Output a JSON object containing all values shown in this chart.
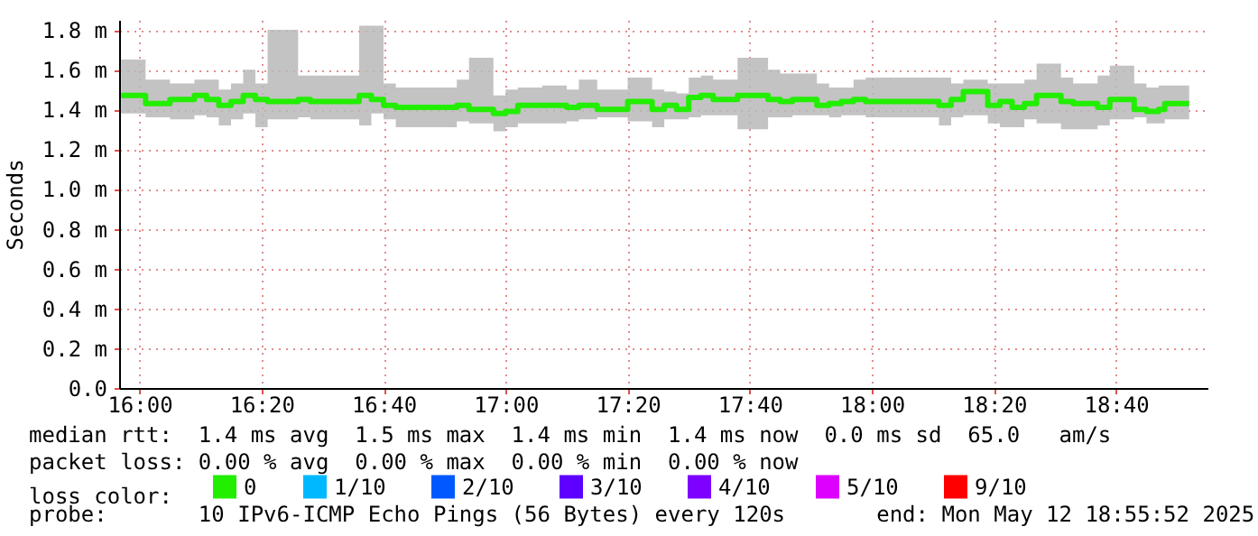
{
  "chart_data": {
    "type": "step",
    "ylabel": "Seconds",
    "legend_title": "loss color:",
    "legend": "bottom",
    "grid": true,
    "line_style": "solid",
    "marker": "none",
    "x": [
      "2025-05-12T15:57",
      "2025-05-12T16:01",
      "2025-05-12T16:05",
      "2025-05-12T16:09",
      "2025-05-12T16:11",
      "2025-05-12T16:13",
      "2025-05-12T16:15",
      "2025-05-12T16:17",
      "2025-05-12T16:19",
      "2025-05-12T16:21",
      "2025-05-12T16:26",
      "2025-05-12T16:28",
      "2025-05-12T16:36",
      "2025-05-12T16:38",
      "2025-05-12T16:40",
      "2025-05-12T16:42",
      "2025-05-12T16:52",
      "2025-05-12T16:54",
      "2025-05-12T16:58",
      "2025-05-12T17:00",
      "2025-05-12T17:02",
      "2025-05-12T17:06",
      "2025-05-12T17:10",
      "2025-05-12T17:12",
      "2025-05-12T17:15",
      "2025-05-12T17:18",
      "2025-05-12T17:20",
      "2025-05-12T17:24",
      "2025-05-12T17:26",
      "2025-05-12T17:28",
      "2025-05-12T17:30",
      "2025-05-12T17:32",
      "2025-05-12T17:34",
      "2025-05-12T17:38",
      "2025-05-12T17:43",
      "2025-05-12T17:45",
      "2025-05-12T17:47",
      "2025-05-12T17:51",
      "2025-05-12T17:53",
      "2025-05-12T17:55",
      "2025-05-12T17:57",
      "2025-05-12T17:59",
      "2025-05-12T18:11",
      "2025-05-12T18:13",
      "2025-05-12T18:15",
      "2025-05-12T18:19",
      "2025-05-12T18:21",
      "2025-05-12T18:23",
      "2025-05-12T18:25",
      "2025-05-12T18:27",
      "2025-05-12T18:31",
      "2025-05-12T18:33",
      "2025-05-12T18:37",
      "2025-05-12T18:39",
      "2025-05-12T18:43",
      "2025-05-12T18:45",
      "2025-05-12T18:47",
      "2025-05-12T18:48",
      "2025-05-12T18:52"
    ],
    "series": [
      {
        "name": "0",
        "color": "#22ee00",
        "values": [
          1.47,
          1.43,
          1.45,
          1.47,
          1.45,
          1.42,
          1.44,
          1.47,
          1.45,
          1.44,
          1.45,
          1.44,
          1.47,
          1.45,
          1.42,
          1.41,
          1.42,
          1.4,
          1.38,
          1.39,
          1.42,
          1.42,
          1.41,
          1.42,
          1.4,
          1.4,
          1.44,
          1.4,
          1.42,
          1.4,
          1.46,
          1.47,
          1.45,
          1.47,
          1.45,
          1.44,
          1.45,
          1.42,
          1.43,
          1.44,
          1.45,
          1.44,
          1.42,
          1.45,
          1.49,
          1.42,
          1.44,
          1.41,
          1.43,
          1.47,
          1.44,
          1.43,
          1.41,
          1.45,
          1.4,
          1.39,
          1.4,
          1.43,
          1.43
        ],
        "lower": [
          1.38,
          1.36,
          1.35,
          1.37,
          1.36,
          1.32,
          1.35,
          1.38,
          1.31,
          1.35,
          1.36,
          1.35,
          1.32,
          1.38,
          1.35,
          1.31,
          1.34,
          1.33,
          1.29,
          1.31,
          1.33,
          1.33,
          1.34,
          1.35,
          1.36,
          1.36,
          1.34,
          1.31,
          1.35,
          1.35,
          1.36,
          1.37,
          1.37,
          1.3,
          1.36,
          1.36,
          1.37,
          1.37,
          1.36,
          1.37,
          1.37,
          1.36,
          1.32,
          1.36,
          1.37,
          1.33,
          1.31,
          1.31,
          1.35,
          1.33,
          1.3,
          1.3,
          1.32,
          1.35,
          1.36,
          1.33,
          1.33,
          1.35,
          1.36
        ],
        "upper": [
          1.65,
          1.55,
          1.53,
          1.55,
          1.55,
          1.5,
          1.53,
          1.6,
          1.53,
          1.8,
          1.57,
          1.57,
          1.82,
          1.82,
          1.53,
          1.51,
          1.55,
          1.66,
          1.47,
          1.5,
          1.51,
          1.52,
          1.5,
          1.55,
          1.5,
          1.5,
          1.56,
          1.5,
          1.49,
          1.48,
          1.56,
          1.57,
          1.55,
          1.66,
          1.6,
          1.58,
          1.58,
          1.53,
          1.51,
          1.51,
          1.55,
          1.56,
          1.56,
          1.53,
          1.55,
          1.53,
          1.53,
          1.53,
          1.55,
          1.63,
          1.56,
          1.53,
          1.57,
          1.62,
          1.53,
          1.51,
          1.52,
          1.52,
          1.52
        ]
      },
      {
        "name": "1/10",
        "color": "#00b8ff",
        "values": [
          null,
          null,
          null,
          null,
          null,
          null,
          null,
          null,
          null,
          null,
          null,
          null,
          null,
          null,
          null,
          null,
          null,
          null,
          null,
          null,
          null,
          null,
          null,
          null,
          null,
          null,
          null,
          null,
          null,
          null,
          null,
          null,
          null,
          null,
          null,
          null,
          null,
          null,
          null,
          null,
          null,
          null,
          null,
          null,
          null,
          null,
          null,
          null,
          null,
          null,
          null,
          null,
          null,
          null,
          null,
          null,
          null,
          null,
          null
        ]
      },
      {
        "name": "2/10",
        "color": "#0059ff",
        "values": [
          null,
          null,
          null,
          null,
          null,
          null,
          null,
          null,
          null,
          null,
          null,
          null,
          null,
          null,
          null,
          null,
          null,
          null,
          null,
          null,
          null,
          null,
          null,
          null,
          null,
          null,
          null,
          null,
          null,
          null,
          null,
          null,
          null,
          null,
          null,
          null,
          null,
          null,
          null,
          null,
          null,
          null,
          null,
          null,
          null,
          null,
          null,
          null,
          null,
          null,
          null,
          null,
          null,
          null,
          null,
          null,
          null,
          null,
          null
        ]
      },
      {
        "name": "3/10",
        "color": "#5e00ff",
        "values": [
          null,
          null,
          null,
          null,
          null,
          null,
          null,
          null,
          null,
          null,
          null,
          null,
          null,
          null,
          null,
          null,
          null,
          null,
          null,
          null,
          null,
          null,
          null,
          null,
          null,
          null,
          null,
          null,
          null,
          null,
          null,
          null,
          null,
          null,
          null,
          null,
          null,
          null,
          null,
          null,
          null,
          null,
          null,
          null,
          null,
          null,
          null,
          null,
          null,
          null,
          null,
          null,
          null,
          null,
          null,
          null,
          null,
          null,
          null
        ]
      },
      {
        "name": "4/10",
        "color": "#7e00ff",
        "values": [
          null,
          null,
          null,
          null,
          null,
          null,
          null,
          null,
          null,
          null,
          null,
          null,
          null,
          null,
          null,
          null,
          null,
          null,
          null,
          null,
          null,
          null,
          null,
          null,
          null,
          null,
          null,
          null,
          null,
          null,
          null,
          null,
          null,
          null,
          null,
          null,
          null,
          null,
          null,
          null,
          null,
          null,
          null,
          null,
          null,
          null,
          null,
          null,
          null,
          null,
          null,
          null,
          null,
          null,
          null,
          null,
          null,
          null,
          null
        ]
      },
      {
        "name": "5/10",
        "color": "#dd00ff",
        "values": [
          null,
          null,
          null,
          null,
          null,
          null,
          null,
          null,
          null,
          null,
          null,
          null,
          null,
          null,
          null,
          null,
          null,
          null,
          null,
          null,
          null,
          null,
          null,
          null,
          null,
          null,
          null,
          null,
          null,
          null,
          null,
          null,
          null,
          null,
          null,
          null,
          null,
          null,
          null,
          null,
          null,
          null,
          null,
          null,
          null,
          null,
          null,
          null,
          null,
          null,
          null,
          null,
          null,
          null,
          null,
          null,
          null,
          null,
          null
        ]
      },
      {
        "name": "9/10",
        "color": "#ff0000",
        "values": [
          null,
          null,
          null,
          null,
          null,
          null,
          null,
          null,
          null,
          null,
          null,
          null,
          null,
          null,
          null,
          null,
          null,
          null,
          null,
          null,
          null,
          null,
          null,
          null,
          null,
          null,
          null,
          null,
          null,
          null,
          null,
          null,
          null,
          null,
          null,
          null,
          null,
          null,
          null,
          null,
          null,
          null,
          null,
          null,
          null,
          null,
          null,
          null,
          null,
          null,
          null,
          null,
          null,
          null,
          null,
          null,
          null,
          null,
          null
        ]
      }
    ],
    "xlim": [
      "2025-05-12T15:56:40",
      "2025-05-12T18:55"
    ],
    "xticks": [
      {
        "value": "2025-05-12T16:00",
        "label": "16:00"
      },
      {
        "value": "2025-05-12T16:20",
        "label": "16:20"
      },
      {
        "value": "2025-05-12T16:40",
        "label": "16:40"
      },
      {
        "value": "2025-05-12T17:00",
        "label": "17:00"
      },
      {
        "value": "2025-05-12T17:20",
        "label": "17:20"
      },
      {
        "value": "2025-05-12T17:40",
        "label": "17:40"
      },
      {
        "value": "2025-05-12T18:00",
        "label": "18:00"
      },
      {
        "value": "2025-05-12T18:20",
        "label": "18:20"
      },
      {
        "value": "2025-05-12T18:40",
        "label": "18:40"
      }
    ],
    "ylim": [
      0,
      1.85
    ],
    "yticks": [
      {
        "value": 0,
        "label": "0.0"
      },
      {
        "value": 0.2,
        "label": "0.2 m"
      },
      {
        "value": 0.4,
        "label": "0.4 m"
      },
      {
        "value": 0.6,
        "label": "0.6 m"
      },
      {
        "value": 0.8,
        "label": "0.8 m"
      },
      {
        "value": 1.0,
        "label": "1.0 m"
      },
      {
        "value": 1.2,
        "label": "1.2 m"
      },
      {
        "value": 1.4,
        "label": "1.4 m"
      },
      {
        "value": 1.6,
        "label": "1.6 m"
      },
      {
        "value": 1.8,
        "label": "1.8 m"
      }
    ],
    "annotations": [
      "median rtt:  1.4 ms avg  1.5 ms max  1.4 ms min  1.4 ms now  0.0 ms sd  65.0   am/s",
      "packet loss: 0.00 % avg  0.00 % max  0.00 % min  0.00 % now",
      "probe:       10 IPv6-ICMP Echo Pings (56 Bytes) every 120s       end: Mon May 12 18:55:52 2025"
    ]
  }
}
